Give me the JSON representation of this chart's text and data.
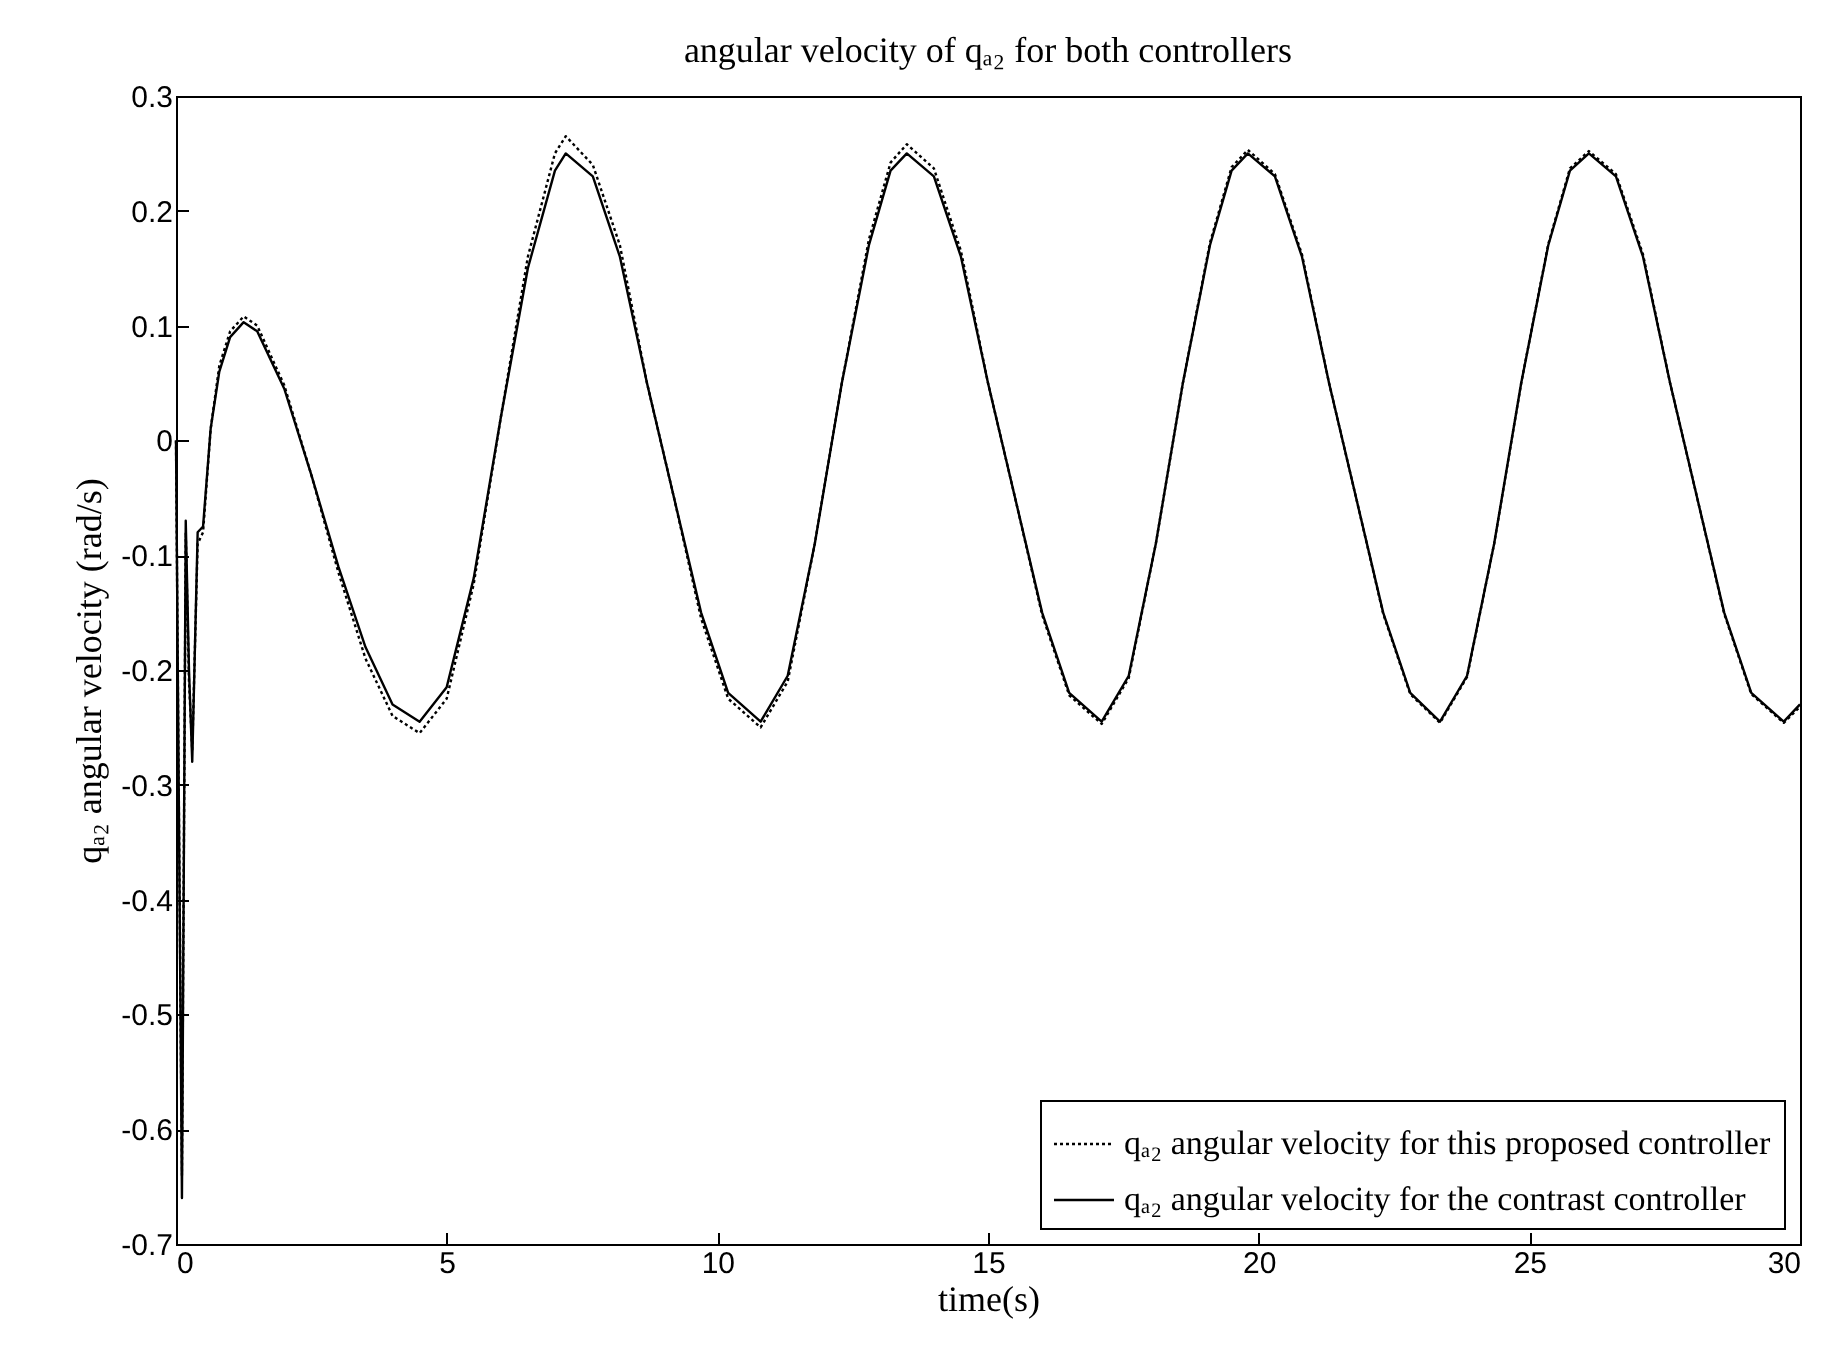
{
  "chart_data": {
    "type": "line",
    "title": "angular velocity of qₐ₂ for both controllers",
    "xlabel": "time(s)",
    "ylabel": "qₐ₂ angular velocity (rad/s)",
    "xlim": [
      0,
      30
    ],
    "xticks": [
      0,
      5,
      10,
      15,
      20,
      25,
      30
    ],
    "ylim": [
      -0.7,
      0.3
    ],
    "yticks": [
      -0.7,
      -0.6,
      -0.5,
      -0.4,
      -0.3,
      -0.2,
      -0.1,
      0,
      0.1,
      0.2,
      0.3
    ],
    "legend": "bottom right",
    "grid": false,
    "x": [
      0,
      0.05,
      0.11,
      0.18,
      0.24,
      0.3,
      0.4,
      0.5,
      0.64,
      0.8,
      1.0,
      1.25,
      1.5,
      2.0,
      2.5,
      3.0,
      3.5,
      4.0,
      4.5,
      5.0,
      5.5,
      6.0,
      6.5,
      7.0,
      7.2,
      7.7,
      8.2,
      8.7,
      9.2,
      9.7,
      10.2,
      10.8,
      11.3,
      11.8,
      12.3,
      12.8,
      13.2,
      13.5,
      14.0,
      14.5,
      15.0,
      15.5,
      16.0,
      16.5,
      17.1,
      17.6,
      18.1,
      18.6,
      19.1,
      19.5,
      19.8,
      20.3,
      20.8,
      21.3,
      21.8,
      22.3,
      22.8,
      23.35,
      23.85,
      24.35,
      24.85,
      25.35,
      25.75,
      26.1,
      26.6,
      27.1,
      27.6,
      28.1,
      28.6,
      29.1,
      29.7,
      30
    ],
    "series": [
      {
        "name": "qₐ₂ angular velocity for this proposed controller",
        "color": "#000000",
        "line_style": "dotted",
        "values": [
          0,
          -0.3,
          -0.64,
          -0.08,
          -0.21,
          -0.27,
          -0.09,
          -0.08,
          0.01,
          0.065,
          0.095,
          0.108,
          0.1,
          0.048,
          -0.03,
          -0.115,
          -0.19,
          -0.24,
          -0.255,
          -0.225,
          -0.125,
          0.02,
          0.16,
          0.25,
          0.265,
          0.24,
          0.17,
          0.05,
          -0.05,
          -0.155,
          -0.225,
          -0.25,
          -0.21,
          -0.09,
          0.05,
          0.175,
          0.242,
          0.258,
          0.237,
          0.165,
          0.05,
          -0.05,
          -0.152,
          -0.222,
          -0.247,
          -0.207,
          -0.09,
          0.05,
          0.172,
          0.238,
          0.253,
          0.232,
          0.162,
          0.05,
          -0.05,
          -0.151,
          -0.221,
          -0.246,
          -0.206,
          -0.09,
          0.05,
          0.171,
          0.237,
          0.252,
          0.232,
          0.162,
          0.05,
          -0.05,
          -0.151,
          -0.221,
          -0.246,
          -0.232
        ]
      },
      {
        "name": "qₐ₂ angular velocity for the contrast controller",
        "color": "#000000",
        "line_style": "solid",
        "values": [
          0,
          -0.3,
          -0.66,
          -0.07,
          -0.2,
          -0.28,
          -0.08,
          -0.075,
          0.01,
          0.06,
          0.09,
          0.103,
          0.095,
          0.045,
          -0.03,
          -0.11,
          -0.18,
          -0.23,
          -0.245,
          -0.215,
          -0.12,
          0.02,
          0.15,
          0.235,
          0.25,
          0.23,
          0.16,
          0.05,
          -0.05,
          -0.15,
          -0.22,
          -0.245,
          -0.205,
          -0.09,
          0.05,
          0.17,
          0.235,
          0.25,
          0.23,
          0.16,
          0.05,
          -0.05,
          -0.15,
          -0.22,
          -0.245,
          -0.205,
          -0.09,
          0.05,
          0.17,
          0.235,
          0.25,
          0.23,
          0.16,
          0.05,
          -0.05,
          -0.15,
          -0.22,
          -0.245,
          -0.205,
          -0.09,
          0.05,
          0.17,
          0.235,
          0.25,
          0.23,
          0.16,
          0.05,
          -0.05,
          -0.15,
          -0.22,
          -0.245,
          -0.23
        ]
      }
    ]
  }
}
